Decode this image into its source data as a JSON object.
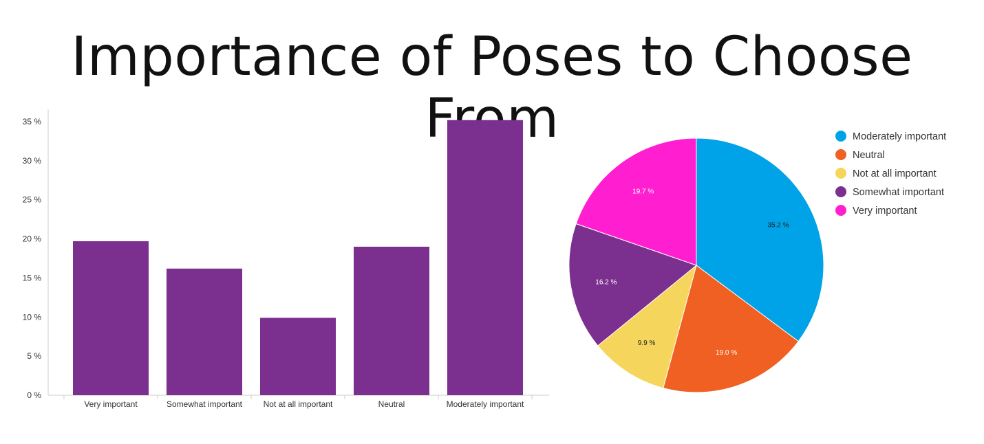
{
  "title": "Importance of Poses to Choose From",
  "chart_data": [
    {
      "type": "bar",
      "categories": [
        "Very important",
        "Somewhat important",
        "Not at all important",
        "Neutral",
        "Moderately important"
      ],
      "values": [
        19.7,
        16.2,
        9.9,
        19.0,
        35.2
      ],
      "ylim": [
        0,
        35
      ],
      "yticks": [
        "0 %",
        "5 %",
        "10 %",
        "15 %",
        "20 %",
        "25 %",
        "30 %",
        "35 %"
      ],
      "bar_color": "#7b2f8e",
      "xlabel": "",
      "ylabel": ""
    },
    {
      "type": "pie",
      "slices": [
        {
          "label": "Moderately important",
          "value": 35.2,
          "text": "35.2 %",
          "color": "#00a2e8"
        },
        {
          "label": "Neutral",
          "value": 19.0,
          "text": "19.0 %",
          "color": "#f06022"
        },
        {
          "label": "Not at all important",
          "value": 9.9,
          "text": "9.9 %",
          "color": "#f6d55c"
        },
        {
          "label": "Somewhat important",
          "value": 16.2,
          "text": "16.2 %",
          "color": "#7b2f8e"
        },
        {
          "label": "Very important",
          "value": 19.7,
          "text": "19.7 %",
          "color": "#ff1fd1"
        }
      ],
      "legend_position": "right"
    }
  ]
}
